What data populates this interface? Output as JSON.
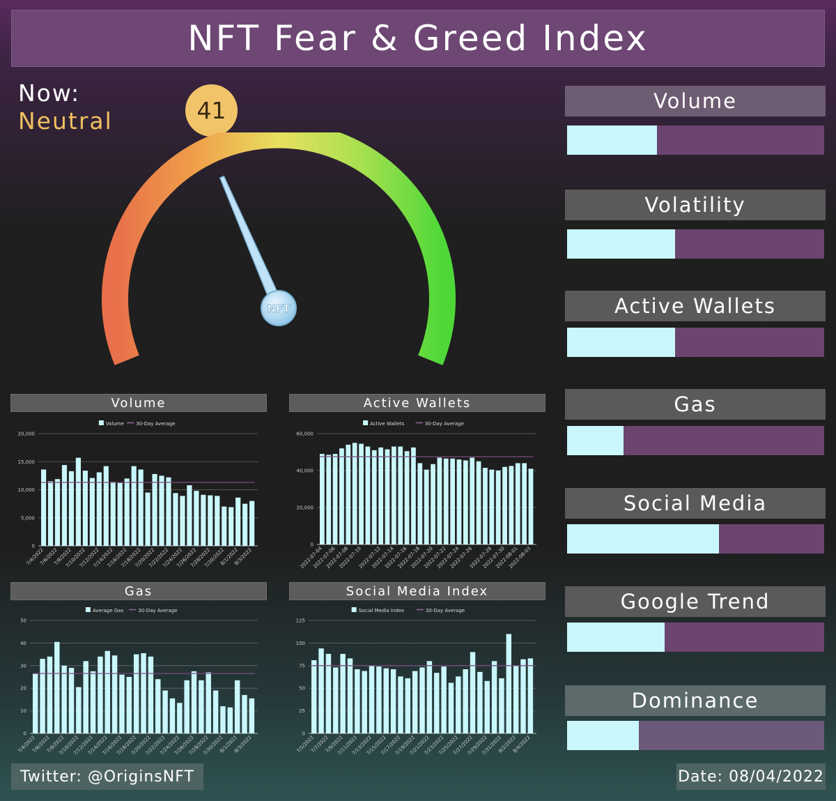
{
  "header": {
    "title": "NFT Fear & Greed Index"
  },
  "now": {
    "label": "Now:",
    "sentiment": "Neutral",
    "score": "41",
    "score_value": 41
  },
  "gauge": {
    "needle_label": "NFT",
    "min": 0,
    "max": 100
  },
  "colors": {
    "bar": "#c9f7fb",
    "avg_line": "#7a4d7e",
    "track": "#6b4470",
    "accent": "#f2c46a"
  },
  "metrics": [
    {
      "label": "Volume",
      "value": 35
    },
    {
      "label": "Volatility",
      "value": 42
    },
    {
      "label": "Active Wallets",
      "value": 42
    },
    {
      "label": "Gas",
      "value": 22
    },
    {
      "label": "Social Media",
      "value": 59
    },
    {
      "label": "Google Trend",
      "value": 38
    },
    {
      "label": "Dominance",
      "value": 28
    }
  ],
  "chart_data": [
    {
      "type": "bar",
      "title": "Volume",
      "legend": [
        "Volume",
        "30-Day Average"
      ],
      "ylim": [
        0,
        20000
      ],
      "yticks": [
        "0",
        "5,000",
        "10,000",
        "15,000",
        "20,000"
      ],
      "x_tick_labels": [
        "7/4/2022",
        "7/6/2022",
        "7/8/2022",
        "7/10/2022",
        "7/12/2022",
        "7/14/2022",
        "7/16/2022",
        "7/18/2022",
        "7/20/2022",
        "7/22/2022",
        "7/24/2022",
        "7/26/2022",
        "7/28/2022",
        "7/30/2022",
        "8/1/2022",
        "8/3/2022"
      ],
      "values": [
        13600,
        11500,
        11900,
        14400,
        13300,
        15700,
        13400,
        12100,
        13100,
        14200,
        11400,
        11200,
        12000,
        14200,
        13600,
        9500,
        12800,
        12500,
        12200,
        9400,
        8900,
        10800,
        9800,
        9100,
        9000,
        8900,
        7000,
        6900,
        8600,
        7500,
        8000
      ],
      "average": 11300
    },
    {
      "type": "bar",
      "title": "Active Wallets",
      "legend": [
        "Active Wallets",
        "30-Day Average"
      ],
      "ylim": [
        0,
        60000
      ],
      "yticks": [
        "0",
        "20,000",
        "40,000",
        "60,000"
      ],
      "x_tick_labels": [
        "2022-07-04",
        "2022-07-06",
        "2022-07-08",
        "2022-07-10",
        "2022-07-12",
        "2022-07-14",
        "2022-07-16",
        "2022-07-18",
        "2022-07-20",
        "2022-07-22",
        "2022-07-24",
        "2022-07-26",
        "2022-07-28",
        "2022-07-30",
        "2022-08-01",
        "2022-08-03"
      ],
      "values": [
        49000,
        48500,
        49000,
        52000,
        54000,
        55000,
        54500,
        53000,
        51000,
        52500,
        51500,
        53000,
        53000,
        50500,
        52500,
        44000,
        40500,
        43500,
        47000,
        46500,
        46500,
        46000,
        45500,
        47000,
        45000,
        41500,
        40500,
        40000,
        42000,
        42500,
        44000,
        44000,
        41000
      ],
      "average": 47500
    },
    {
      "type": "bar",
      "title": "Gas",
      "legend": [
        "Average Gas",
        "30-Day Average"
      ],
      "ylim": [
        0,
        50
      ],
      "yticks": [
        "0",
        "10",
        "20",
        "30",
        "40",
        "50"
      ],
      "x_tick_labels": [
        "7/4/2022",
        "7/6/2022",
        "7/8/2022",
        "7/10/2022",
        "7/12/2022",
        "7/14/2022",
        "7/16/2022",
        "7/18/2022",
        "7/20/2022",
        "7/22/2022",
        "7/24/2022",
        "7/26/2022",
        "7/28/2022",
        "7/30/2022",
        "8/1/2022",
        "8/3/2022"
      ],
      "values": [
        26.5,
        33,
        34,
        40.5,
        30,
        29,
        20.5,
        32,
        27.5,
        34,
        36.5,
        34.5,
        26,
        25,
        35,
        35.5,
        34,
        24,
        19,
        15.5,
        13.5,
        23.5,
        27.5,
        23.5,
        27,
        19,
        12,
        11.5,
        23.5,
        17,
        15.5
      ],
      "average": 26.5
    },
    {
      "type": "bar",
      "title": "Social Media Index",
      "legend": [
        "Social Media Index",
        "30-Day Average"
      ],
      "ylim": [
        0,
        125
      ],
      "yticks": [
        "0",
        "25",
        "50",
        "75",
        "100",
        "125"
      ],
      "x_tick_labels": [
        "7/5/2022",
        "7/7/2022",
        "7/9/2022",
        "7/11/2022",
        "7/13/2022",
        "7/15/2022",
        "7/17/2022",
        "7/19/2022",
        "7/21/2022",
        "7/23/2022",
        "7/25/2022",
        "7/27/2022",
        "7/29/2022",
        "7/31/2022",
        "8/2/2022",
        "8/4/2022"
      ],
      "values": [
        81,
        94,
        88,
        73,
        88,
        83,
        71,
        69,
        75,
        74,
        72,
        71,
        63,
        61,
        69,
        73,
        80,
        67,
        74,
        56,
        63,
        71,
        90,
        68,
        58,
        80,
        61,
        110,
        75,
        82,
        83
      ],
      "average": 75
    }
  ],
  "footer": {
    "twitter": "Twitter: @OriginsNFT",
    "date": "Date: 08/04/2022"
  }
}
